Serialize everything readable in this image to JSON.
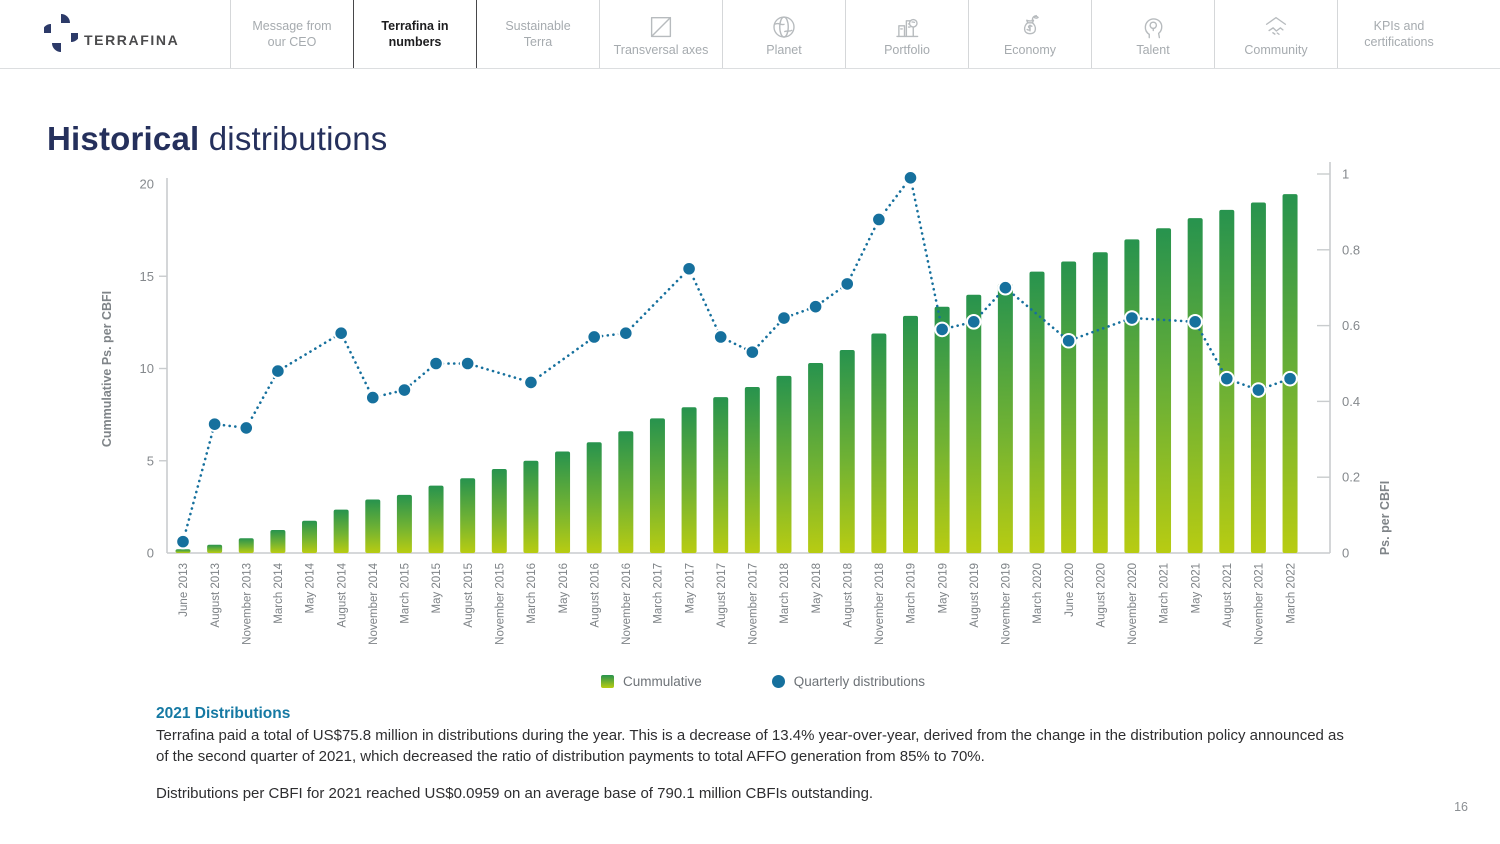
{
  "header": {
    "brand": "TERRAFINA",
    "nav": [
      {
        "label": "Message from\nour CEO",
        "icon": null,
        "active": false
      },
      {
        "label": "Terrafina in\nnumbers",
        "icon": null,
        "active": true
      },
      {
        "label": "Sustainable\nTerra",
        "icon": null,
        "active": false
      },
      {
        "label": "Transversal axes",
        "icon": "transversal-axes-icon",
        "active": false
      },
      {
        "label": "Planet",
        "icon": "planet-icon",
        "active": false
      },
      {
        "label": "Portfolio",
        "icon": "portfolio-icon",
        "active": false
      },
      {
        "label": "Economy",
        "icon": "economy-icon",
        "active": false
      },
      {
        "label": "Talent",
        "icon": "talent-icon",
        "active": false
      },
      {
        "label": "Community",
        "icon": "community-icon",
        "active": false
      },
      {
        "label": "KPIs and\ncertifications",
        "icon": null,
        "active": false
      }
    ]
  },
  "title": {
    "bold": "Historical",
    "regular": " distributions"
  },
  "chart_data": {
    "type": "bar+line",
    "categories": [
      "June 2013",
      "August 2013",
      "November 2013",
      "March 2014",
      "May 2014",
      "August 2014",
      "November 2014",
      "March 2015",
      "May 2015",
      "August 2015",
      "November 2015",
      "March 2016",
      "May 2016",
      "August 2016",
      "November 2016",
      "March 2017",
      "May 2017",
      "August 2017",
      "November 2017",
      "March 2018",
      "May 2018",
      "August 2018",
      "November 2018",
      "March 2019",
      "May 2019",
      "August 2019",
      "November 2019",
      "March 2020",
      "June 2020",
      "August 2020",
      "November 2020",
      "March 2021",
      "May 2021",
      "August 2021",
      "November 2021",
      "March 2022"
    ],
    "series": [
      {
        "name": "Cummulative",
        "type": "bar",
        "axis": "left",
        "values": [
          0.2,
          0.45,
          0.8,
          1.25,
          1.75,
          2.35,
          2.9,
          3.15,
          3.65,
          4.05,
          4.55,
          5.0,
          5.5,
          6.0,
          6.6,
          7.3,
          7.9,
          8.45,
          9.0,
          9.6,
          10.3,
          11.0,
          11.9,
          12.85,
          13.35,
          14.0,
          14.6,
          15.25,
          15.8,
          16.3,
          17.0,
          17.6,
          18.15,
          18.6,
          19.0,
          19.45
        ]
      },
      {
        "name": "Quarterly distributions",
        "type": "line",
        "axis": "right",
        "values": [
          0.03,
          0.34,
          0.33,
          0.48,
          null,
          0.58,
          0.41,
          0.43,
          0.5,
          0.5,
          null,
          0.45,
          null,
          0.57,
          0.58,
          null,
          0.75,
          0.57,
          0.53,
          0.62,
          0.65,
          0.71,
          0.88,
          0.99,
          0.59,
          0.61,
          0.7,
          null,
          0.56,
          null,
          0.62,
          null,
          0.61,
          0.46,
          0.43,
          0.46
        ]
      }
    ],
    "left_axis": {
      "label": "Cummulative Ps. per CBFI",
      "ticks": [
        0,
        5,
        10,
        15,
        20
      ],
      "range": [
        0,
        20
      ]
    },
    "right_axis": {
      "label": "Ps. per CBFI",
      "ticks": [
        "0",
        "0.2",
        "0.4",
        "0.6",
        "0.8",
        "1"
      ],
      "range": [
        0,
        1
      ]
    },
    "legend": [
      "Cummulative",
      "Quarterly distributions"
    ],
    "grid": false,
    "legend_position": "bottom"
  },
  "body": {
    "heading": "2021 Distributions",
    "p1": "Terrafina paid a total of US$75.8 million in distributions during the year. This is a decrease of 13.4% year-over-year, derived from the change in the distribution policy announced as of the second quarter of 2021, which decreased the ratio of distribution payments to total AFFO generation from 85% to 70%.",
    "p2": "Distributions per CBFI for 2021 reached US$0.0959 on an average base of 790.1 million CBFIs outstanding."
  },
  "page": {
    "number": "16"
  },
  "colors": {
    "accent_navy": "#25305c",
    "heading_teal": "#1579a3",
    "bar_gradient_top": "#27934e",
    "bar_gradient_mid": "#71b233",
    "bar_gradient_bottom": "#b8cc12",
    "dot_blue": "#16709d",
    "axis_gray": "#c9ccce",
    "label_gray": "#85898d"
  }
}
